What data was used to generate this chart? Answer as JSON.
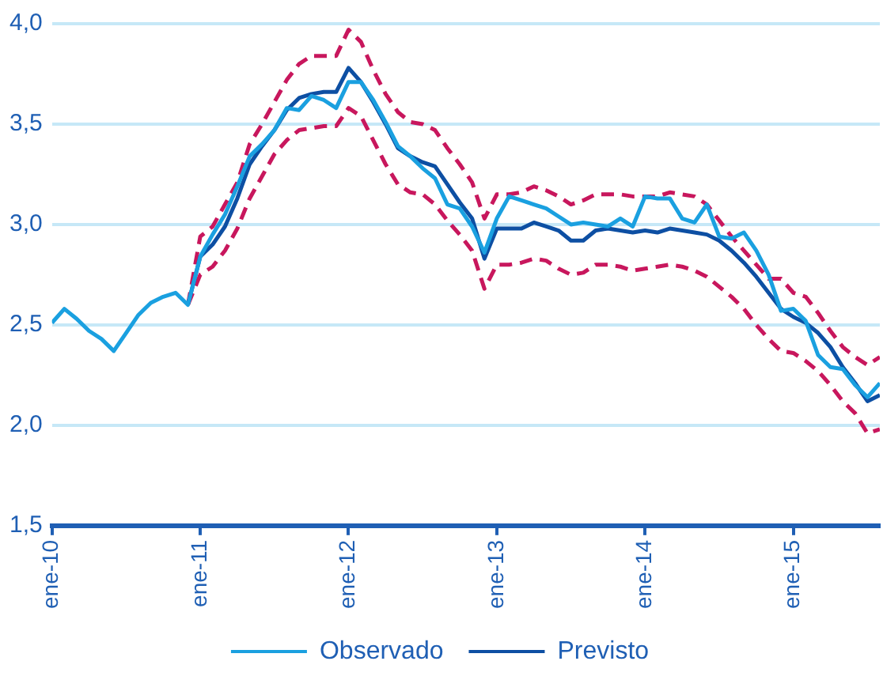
{
  "chart_data": {
    "type": "line",
    "x": [
      "2010-01",
      "2010-02",
      "2010-03",
      "2010-04",
      "2010-05",
      "2010-06",
      "2010-07",
      "2010-08",
      "2010-09",
      "2010-10",
      "2010-11",
      "2010-12",
      "2011-01",
      "2011-02",
      "2011-03",
      "2011-04",
      "2011-05",
      "2011-06",
      "2011-07",
      "2011-08",
      "2011-09",
      "2011-10",
      "2011-11",
      "2011-12",
      "2012-01",
      "2012-02",
      "2012-03",
      "2012-04",
      "2012-05",
      "2012-06",
      "2012-07",
      "2012-08",
      "2012-09",
      "2012-10",
      "2012-11",
      "2012-12",
      "2013-01",
      "2013-02",
      "2013-03",
      "2013-04",
      "2013-05",
      "2013-06",
      "2013-07",
      "2013-08",
      "2013-09",
      "2013-10",
      "2013-11",
      "2013-12",
      "2014-01",
      "2014-02",
      "2014-03",
      "2014-04",
      "2014-05",
      "2014-06",
      "2014-07",
      "2014-08",
      "2014-09",
      "2014-10",
      "2014-11",
      "2014-12",
      "2015-01",
      "2015-02",
      "2015-03",
      "2015-04",
      "2015-05",
      "2015-06",
      "2015-07",
      "2015-08"
    ],
    "series": [
      {
        "name": "Observado",
        "color": "#1aa0e0",
        "values": [
          2.51,
          2.58,
          2.53,
          2.47,
          2.43,
          2.37,
          2.46,
          2.55,
          2.61,
          2.64,
          2.66,
          2.6,
          2.84,
          2.95,
          3.05,
          3.19,
          3.34,
          3.4,
          3.47,
          3.58,
          3.57,
          3.64,
          3.62,
          3.58,
          3.71,
          3.71,
          3.62,
          3.51,
          3.39,
          3.34,
          3.28,
          3.23,
          3.1,
          3.08,
          2.99,
          2.86,
          3.03,
          3.14,
          3.12,
          3.1,
          3.08,
          3.04,
          3.0,
          3.01,
          3.0,
          2.99,
          3.03,
          2.99,
          3.14,
          3.13,
          3.13,
          3.03,
          3.01,
          3.1,
          2.94,
          2.93,
          2.96,
          2.87,
          2.75,
          2.57,
          2.58,
          2.52,
          2.35,
          2.29,
          2.28,
          2.2,
          2.14,
          2.21
        ]
      },
      {
        "name": "Previsto",
        "color": "#0d4fa3",
        "values": [
          null,
          null,
          null,
          null,
          null,
          null,
          null,
          null,
          null,
          null,
          null,
          2.6,
          2.84,
          2.9,
          2.99,
          3.13,
          3.3,
          3.39,
          3.47,
          3.57,
          3.63,
          3.65,
          3.66,
          3.66,
          3.78,
          3.71,
          3.61,
          3.5,
          3.38,
          3.34,
          3.31,
          3.29,
          3.2,
          3.11,
          3.03,
          2.83,
          2.98,
          2.98,
          2.98,
          3.01,
          2.99,
          2.97,
          2.92,
          2.92,
          2.97,
          2.98,
          2.97,
          2.96,
          2.97,
          2.96,
          2.98,
          2.97,
          2.96,
          2.95,
          2.92,
          2.87,
          2.81,
          2.74,
          2.66,
          2.58,
          2.54,
          2.51,
          2.46,
          2.39,
          2.29,
          2.21,
          2.12,
          2.15
        ]
      },
      {
        "color": "#c8175d",
        "line_style": "dashed",
        "values": [
          null,
          null,
          null,
          null,
          null,
          null,
          null,
          null,
          null,
          null,
          null,
          2.6,
          2.94,
          2.99,
          3.1,
          3.21,
          3.4,
          3.5,
          3.61,
          3.72,
          3.8,
          3.84,
          3.84,
          3.84,
          3.97,
          3.91,
          3.77,
          3.65,
          3.56,
          3.51,
          3.5,
          3.47,
          3.38,
          3.3,
          3.21,
          3.03,
          3.15,
          3.15,
          3.16,
          3.19,
          3.17,
          3.14,
          3.1,
          3.12,
          3.15,
          3.15,
          3.15,
          3.14,
          3.14,
          3.14,
          3.16,
          3.15,
          3.14,
          3.1,
          3.02,
          2.94,
          2.87,
          2.8,
          2.73,
          2.73,
          2.66,
          2.64,
          2.56,
          2.47,
          2.39,
          2.34,
          2.3,
          2.34
        ]
      },
      {
        "color": "#c8175d",
        "line_style": "dashed",
        "values": [
          null,
          null,
          null,
          null,
          null,
          null,
          null,
          null,
          null,
          null,
          null,
          2.6,
          2.75,
          2.79,
          2.87,
          2.98,
          3.13,
          3.24,
          3.35,
          3.42,
          3.47,
          3.48,
          3.49,
          3.49,
          3.58,
          3.54,
          3.42,
          3.3,
          3.2,
          3.16,
          3.15,
          3.1,
          3.02,
          2.95,
          2.87,
          2.68,
          2.8,
          2.8,
          2.81,
          2.83,
          2.82,
          2.78,
          2.75,
          2.76,
          2.8,
          2.8,
          2.79,
          2.77,
          2.78,
          2.79,
          2.8,
          2.79,
          2.77,
          2.74,
          2.69,
          2.64,
          2.58,
          2.5,
          2.43,
          2.37,
          2.36,
          2.32,
          2.27,
          2.2,
          2.12,
          2.06,
          1.96,
          1.98
        ]
      }
    ],
    "xlim": [
      "2010-01",
      "2015-08"
    ],
    "xticks": [
      {
        "value": "2010-01",
        "label": "ene-10"
      },
      {
        "value": "2011-01",
        "label": "ene-11"
      },
      {
        "value": "2012-01",
        "label": "ene-12"
      },
      {
        "value": "2013-01",
        "label": "ene-13"
      },
      {
        "value": "2014-01",
        "label": "ene-14"
      },
      {
        "value": "2015-01",
        "label": "ene-15"
      }
    ],
    "ylim": [
      1.5,
      4.0
    ],
    "yticks": [
      {
        "value": 1.5,
        "label": "1,5"
      },
      {
        "value": 2.0,
        "label": "2,0"
      },
      {
        "value": 2.5,
        "label": "2,5"
      },
      {
        "value": 3.0,
        "label": "3,0"
      },
      {
        "value": 3.5,
        "label": "3,5"
      },
      {
        "value": 4.0,
        "label": "4,0"
      }
    ],
    "grid": "y",
    "legend": "bottom",
    "marker": "none",
    "line_style": "solid"
  }
}
